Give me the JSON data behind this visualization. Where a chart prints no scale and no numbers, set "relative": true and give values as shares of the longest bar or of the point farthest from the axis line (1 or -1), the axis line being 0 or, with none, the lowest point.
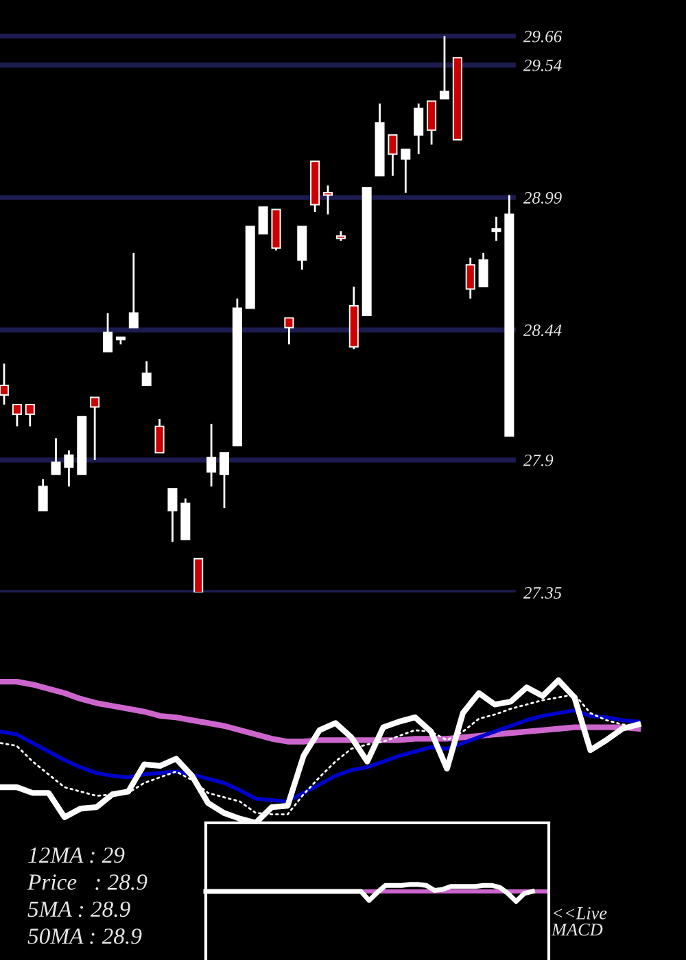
{
  "chart_data": [
    {
      "type": "candlestick",
      "categories": [
        null,
        null,
        null,
        null,
        null,
        null,
        null,
        null,
        null,
        null,
        null,
        null,
        null,
        null,
        null,
        null,
        null,
        null,
        null,
        null,
        null,
        null,
        null,
        null,
        null,
        null,
        null,
        null,
        null,
        null,
        null,
        null,
        null,
        null,
        null,
        null,
        null,
        null,
        null,
        null
      ],
      "ohlc": [
        [
          28.21,
          28.3,
          28.13,
          28.17
        ],
        [
          28.13,
          28.13,
          28.04,
          28.09
        ],
        [
          28.13,
          28.13,
          28.04,
          28.09
        ],
        [
          27.69,
          27.82,
          27.69,
          27.79
        ],
        [
          27.84,
          27.99,
          27.84,
          27.89
        ],
        [
          27.87,
          27.94,
          27.79,
          27.92
        ],
        [
          27.84,
          28.08,
          27.84,
          28.08
        ],
        [
          28.16,
          28.16,
          27.9,
          28.12
        ],
        [
          28.35,
          28.51,
          28.35,
          28.43
        ],
        [
          28.4,
          28.41,
          28.38,
          28.41
        ],
        [
          28.45,
          28.76,
          28.45,
          28.51
        ],
        [
          28.21,
          28.31,
          28.21,
          28.26
        ],
        [
          28.04,
          28.07,
          27.93,
          27.93
        ],
        [
          27.69,
          27.78,
          27.56,
          27.78
        ],
        [
          27.57,
          27.74,
          27.57,
          27.72
        ],
        [
          27.49,
          27.49,
          27.35,
          27.35
        ],
        [
          27.85,
          28.05,
          27.79,
          27.91
        ],
        [
          27.84,
          27.93,
          27.7,
          27.93
        ],
        [
          27.96,
          28.57,
          27.96,
          28.53
        ],
        [
          28.53,
          28.87,
          28.53,
          28.87
        ],
        [
          28.84,
          28.95,
          28.84,
          28.95
        ],
        [
          28.94,
          28.94,
          28.77,
          28.78
        ],
        [
          28.49,
          28.49,
          28.38,
          28.45
        ],
        [
          28.73,
          28.87,
          28.69,
          28.87
        ],
        [
          29.14,
          29.14,
          28.93,
          28.96
        ],
        [
          29.01,
          29.04,
          28.92,
          29.0
        ],
        [
          28.83,
          28.85,
          28.81,
          28.82
        ],
        [
          28.54,
          28.62,
          28.36,
          28.37
        ],
        [
          28.5,
          29.03,
          28.5,
          29.03
        ],
        [
          29.08,
          29.38,
          29.08,
          29.3
        ],
        [
          29.25,
          29.25,
          29.08,
          29.17
        ],
        [
          29.15,
          29.19,
          29.01,
          29.19
        ],
        [
          29.25,
          29.38,
          29.17,
          29.36
        ],
        [
          29.39,
          29.39,
          29.21,
          29.27
        ],
        [
          29.4,
          29.66,
          29.4,
          29.43
        ],
        [
          29.57,
          29.57,
          29.23,
          29.23
        ],
        [
          28.71,
          28.74,
          28.57,
          28.61
        ],
        [
          28.62,
          28.76,
          28.62,
          28.73
        ],
        [
          28.85,
          28.91,
          28.81,
          28.86
        ],
        [
          28.0,
          29.0,
          28.0,
          28.92
        ]
      ],
      "colors": [
        "#cc0000",
        "#cc0000",
        "#cc0000",
        "#ffffff",
        "#ffffff",
        "#ffffff",
        "#ffffff",
        "#cc0000",
        "#ffffff",
        "#ffffff",
        "#ffffff",
        "#ffffff",
        "#cc0000",
        "#ffffff",
        "#ffffff",
        "#cc0000",
        "#ffffff",
        "#ffffff",
        "#ffffff",
        "#ffffff",
        "#ffffff",
        "#cc0000",
        "#cc0000",
        "#ffffff",
        "#cc0000",
        "#cc0000",
        "#cc0000",
        "#cc0000",
        "#ffffff",
        "#ffffff",
        "#cc0000",
        "#ffffff",
        "#ffffff",
        "#cc0000",
        "#ffffff",
        "#cc0000",
        "#cc0000",
        "#ffffff",
        "#ffffff",
        "#ffffff"
      ],
      "ylim": [
        27.35,
        29.81
      ],
      "yticks": [
        27.35,
        27.9,
        28.44,
        28.99,
        29.54,
        29.66
      ],
      "grid": "y",
      "tick_labels": "y"
    },
    {
      "type": "line",
      "relative": true,
      "categories": [
        null,
        null,
        null,
        null,
        null,
        null,
        null,
        null,
        null,
        null,
        null,
        null,
        null,
        null,
        null,
        null,
        null,
        null,
        null,
        null,
        null,
        null,
        null,
        null,
        null,
        null,
        null,
        null,
        null,
        null,
        null,
        null,
        null,
        null,
        null,
        null,
        null,
        null,
        null,
        null,
        null
      ],
      "series": [
        {
          "color": "#cc66cc",
          "line_style": "solid",
          "values": [
            0.99,
            0.99,
            0.97,
            0.94,
            0.91,
            0.87,
            0.84,
            0.82,
            0.8,
            0.78,
            0.75,
            0.74,
            0.72,
            0.7,
            0.68,
            0.65,
            0.62,
            0.59,
            0.57,
            0.57,
            0.58,
            0.58,
            0.58,
            0.58,
            0.58,
            0.58,
            0.59,
            0.59,
            0.59,
            0.6,
            0.61,
            0.62,
            0.63,
            0.64,
            0.65,
            0.66,
            0.67,
            0.67,
            0.67,
            0.67,
            0.66
          ]
        },
        {
          "color": "#0000cc",
          "line_style": "solid",
          "values": [
            0.64,
            0.62,
            0.56,
            0.5,
            0.44,
            0.39,
            0.35,
            0.33,
            0.32,
            0.34,
            0.35,
            0.36,
            0.34,
            0.31,
            0.28,
            0.23,
            0.17,
            0.16,
            0.15,
            0.21,
            0.27,
            0.33,
            0.37,
            0.39,
            0.43,
            0.47,
            0.5,
            0.53,
            0.52,
            0.56,
            0.6,
            0.64,
            0.68,
            0.72,
            0.75,
            0.77,
            0.79,
            0.75,
            0.74,
            0.72,
            0.71
          ]
        },
        {
          "color": "#ffffff",
          "line_style": "dotted",
          "values": [
            0.56,
            0.54,
            0.43,
            0.34,
            0.25,
            0.22,
            0.19,
            0.2,
            0.21,
            0.28,
            0.32,
            0.36,
            0.3,
            0.21,
            0.18,
            0.15,
            0.07,
            0.06,
            0.06,
            0.2,
            0.32,
            0.43,
            0.52,
            0.55,
            0.57,
            0.61,
            0.65,
            0.64,
            0.58,
            0.64,
            0.73,
            0.76,
            0.8,
            0.83,
            0.86,
            0.88,
            0.9,
            0.77,
            0.72,
            0.69,
            0.68
          ]
        },
        {
          "color": "#ffffff",
          "line_style": "solid",
          "values": [
            0.25,
            0.25,
            0.21,
            0.21,
            0.04,
            0.1,
            0.11,
            0.2,
            0.22,
            0.41,
            0.4,
            0.45,
            0.33,
            0.14,
            0.07,
            0.03,
            0,
            0.11,
            0.12,
            0.47,
            0.65,
            0.7,
            0.6,
            0.43,
            0.67,
            0.71,
            0.74,
            0.64,
            0.38,
            0.77,
            0.91,
            0.83,
            0.85,
            0.95,
            0.89,
            1,
            0.88,
            0.51,
            0.58,
            0.66,
            0.69
          ]
        }
      ],
      "tick_labels": false,
      "annotations": [
        "12MA : 29",
        "Price   : 28.9",
        "5MA : 28.9",
        "50MA : 28.9"
      ]
    },
    {
      "type": "line",
      "relative": true,
      "categories": [
        null,
        null,
        null,
        null,
        null,
        null,
        null,
        null,
        null,
        null,
        null,
        null,
        null,
        null,
        null,
        null,
        null,
        null,
        null,
        null,
        null,
        null,
        null,
        null,
        null,
        null,
        null,
        null,
        null,
        null,
        null,
        null,
        null,
        null,
        null,
        null,
        null,
        null,
        null,
        null,
        null
      ],
      "series": [
        {
          "color": "#ffffff",
          "values": [
            0,
            0,
            0,
            0,
            0,
            0,
            0,
            0,
            0,
            0,
            0,
            0,
            0,
            0,
            0,
            0,
            0,
            0,
            0,
            0,
            -0.9,
            -0.1,
            0.6,
            0.6,
            0.6,
            0.7,
            0.7,
            0.6,
            0.1,
            0.2,
            0.5,
            0.5,
            0.5,
            0.5,
            0.6,
            0.6,
            0.4,
            -0.2,
            -1,
            -0.2,
            0
          ]
        }
      ],
      "ref_lines": [
        {
          "axis": "y",
          "value": 0,
          "color": "#cc66cc"
        }
      ],
      "tick_labels": false,
      "annotations": [
        "<<Live\nMACD"
      ]
    }
  ]
}
